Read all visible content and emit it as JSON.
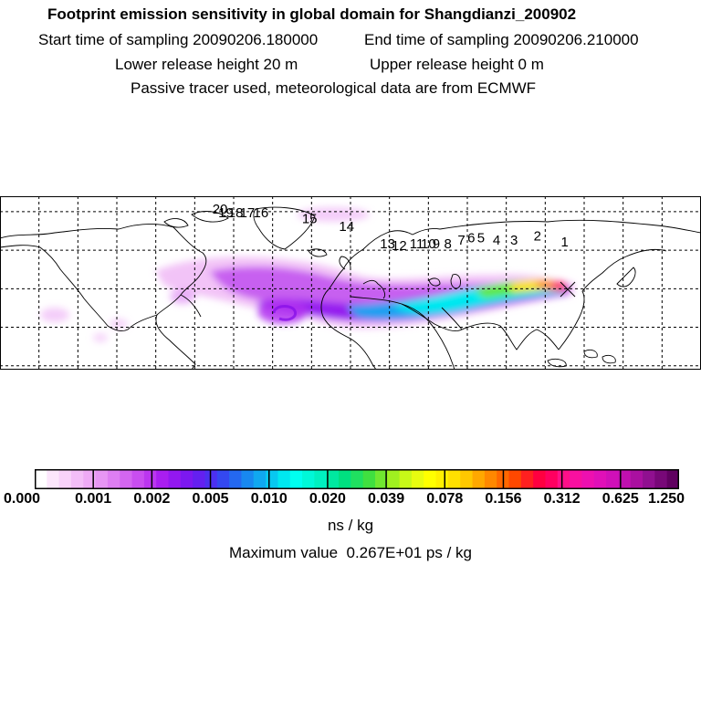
{
  "header": {
    "title": "Footprint emission sensitivity in global domain for Shangdianzi_200902",
    "start_time": "Start time of sampling 20090206.180000",
    "end_time": "End time of sampling 20090206.210000",
    "lower_height": "Lower release height   20 m",
    "upper_height": "Upper release height    0 m",
    "info": "Passive tracer used, meteorological data are from ECMWF"
  },
  "map": {
    "labels": [
      {
        "text": "1",
        "lon": 110,
        "lat": 42
      },
      {
        "text": "2",
        "lon": 96,
        "lat": 45
      },
      {
        "text": "3",
        "lon": 84,
        "lat": 43
      },
      {
        "text": "4",
        "lon": 75,
        "lat": 43
      },
      {
        "text": "5",
        "lon": 67,
        "lat": 44
      },
      {
        "text": "6",
        "lon": 62,
        "lat": 44
      },
      {
        "text": "7",
        "lon": 57,
        "lat": 43
      },
      {
        "text": "8",
        "lon": 50,
        "lat": 41
      },
      {
        "text": "9",
        "lon": 44,
        "lat": 41
      },
      {
        "text": "10",
        "lon": 40,
        "lat": 41
      },
      {
        "text": "11",
        "lon": 34,
        "lat": 41
      },
      {
        "text": "12",
        "lon": 25,
        "lat": 40
      },
      {
        "text": "13",
        "lon": 19,
        "lat": 41
      },
      {
        "text": "14",
        "lon": -2,
        "lat": 50
      },
      {
        "text": "15",
        "lon": -21,
        "lat": 54
      },
      {
        "text": "16",
        "lon": -46,
        "lat": 57
      },
      {
        "text": "17",
        "lon": -53,
        "lat": 57
      },
      {
        "text": "18",
        "lon": -59,
        "lat": 57
      },
      {
        "text": "19",
        "lon": -64,
        "lat": 57
      },
      {
        "text": "20",
        "lon": -67,
        "lat": 59
      }
    ]
  },
  "colorbar": {
    "colors": [
      "#ffffff",
      "#fce6fc",
      "#f8d2fa",
      "#f3bef8",
      "#eeaaf6",
      "#e796f4",
      "#de7ef2",
      "#d466f0",
      "#c94ef0",
      "#bb36f0",
      "#a91ef0",
      "#9318f0",
      "#7c18f0",
      "#6420f0",
      "#4c30f0",
      "#3448f0",
      "#2468f0",
      "#1888f0",
      "#10a8f0",
      "#08c8f0",
      "#00e8f0",
      "#00fff0",
      "#00f8d8",
      "#00f0c0",
      "#00e8a0",
      "#00e080",
      "#20e060",
      "#40e040",
      "#70e830",
      "#a0f020",
      "#c8f818",
      "#e8fc10",
      "#ffff00",
      "#fff000",
      "#ffe000",
      "#ffc800",
      "#ffa800",
      "#ff8800",
      "#ff6800",
      "#ff4800",
      "#ff2020",
      "#ff0040",
      "#ff0060",
      "#ff1088",
      "#f810a0",
      "#ee10b0",
      "#e010b8",
      "#d010b8",
      "#c010b0",
      "#aa10a0",
      "#901090",
      "#780878",
      "#600060"
    ],
    "major_ticks": [
      "0.000",
      "0.001",
      "0.002",
      "0.005",
      "0.010",
      "0.020",
      "0.039",
      "0.078",
      "0.156",
      "0.312",
      "0.625",
      "1.250"
    ]
  },
  "units": "ns / kg",
  "maximum": {
    "label": "Maximum value",
    "value": "0.267E+01 ps / kg"
  }
}
